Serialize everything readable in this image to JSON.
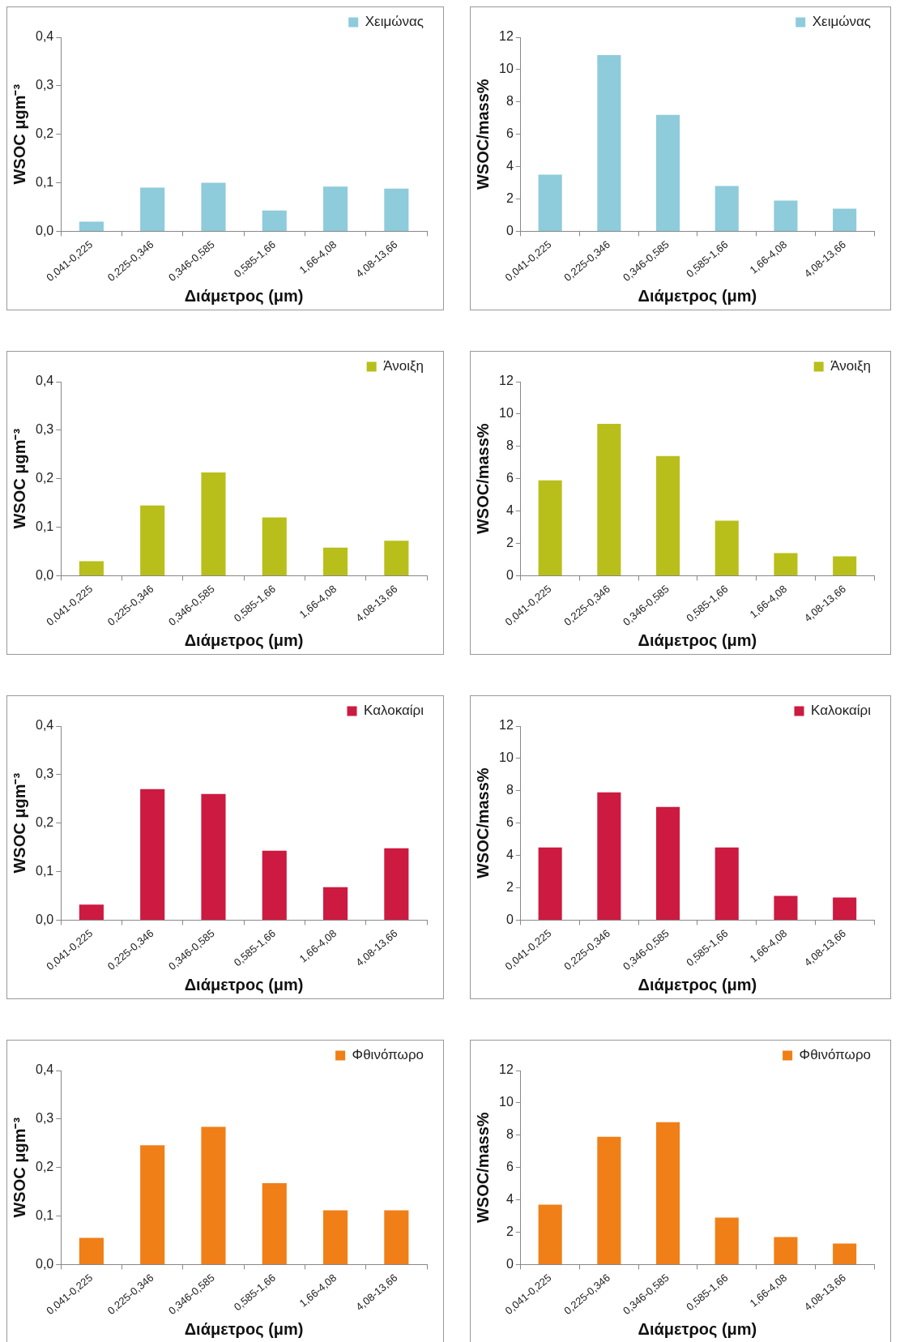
{
  "chart_data": [
    {
      "type": "bar",
      "categories": [
        "0,041-0,225",
        "0,225-0,346",
        "0,346-0,585",
        "0,585-1,66",
        "1,66-4,08",
        "4,08-13,66"
      ],
      "xlabel": "Διάμετρος (μm)",
      "ylabel": "WSOC μgm⁻³",
      "ylim": [
        0,
        0.4
      ],
      "yticks": [
        {
          "value": 0,
          "label": "0,0"
        },
        {
          "value": 0.1,
          "label": "0,1"
        },
        {
          "value": 0.2,
          "label": "0,2"
        },
        {
          "value": 0.3,
          "label": "0,3"
        },
        {
          "value": 0.4,
          "label": "0,4"
        }
      ],
      "legend": "top right",
      "grid": false,
      "series": [
        {
          "name": "Χειμώνας",
          "color": "#8ecbdb",
          "values": [
            0.02,
            0.09,
            0.1,
            0.043,
            0.092,
            0.088
          ]
        }
      ]
    },
    {
      "type": "bar",
      "categories": [
        "0,041-0,225",
        "0,225-0,346",
        "0,346-0,585",
        "0,585-1,66",
        "1,66-4,08",
        "4,08-13,66"
      ],
      "xlabel": "Διάμετρος (μm)",
      "ylabel": "WSOC/mass%",
      "ylim": [
        0,
        12
      ],
      "yticks": [
        0,
        2,
        4,
        6,
        8,
        10,
        12
      ],
      "legend": "top right",
      "grid": false,
      "series": [
        {
          "name": "Χειμώνας",
          "color": "#8ecbdb",
          "values": [
            3.5,
            10.9,
            7.2,
            2.8,
            1.9,
            1.4
          ]
        }
      ]
    },
    {
      "type": "bar",
      "categories": [
        "0,041-0,225",
        "0,225-0,346",
        "0,346-0,585",
        "0,585-1,66",
        "1,66-4,08",
        "4,08-13,66"
      ],
      "xlabel": "Διάμετρος (μm)",
      "ylabel": "WSOC μgm⁻³",
      "ylim": [
        0,
        0.4
      ],
      "yticks": [
        {
          "value": 0,
          "label": "0,0"
        },
        {
          "value": 0.1,
          "label": "0,1"
        },
        {
          "value": 0.2,
          "label": "0,2"
        },
        {
          "value": 0.3,
          "label": "0,3"
        },
        {
          "value": 0.4,
          "label": "0,4"
        }
      ],
      "legend": "top right",
      "grid": false,
      "series": [
        {
          "name": "Άνοιξη",
          "color": "#b8bf1a",
          "values": [
            0.03,
            0.145,
            0.213,
            0.12,
            0.058,
            0.072
          ]
        }
      ]
    },
    {
      "type": "bar",
      "categories": [
        "0,041-0,225",
        "0,225-0,346",
        "0,346-0,585",
        "0,585-1,66",
        "1,66-4,08",
        "4,08-13,66"
      ],
      "xlabel": "Διάμετρος (μm)",
      "ylabel": "WSOC/mass%",
      "ylim": [
        0,
        12
      ],
      "yticks": [
        0,
        2,
        4,
        6,
        8,
        10,
        12
      ],
      "legend": "top right",
      "grid": false,
      "series": [
        {
          "name": "Άνοιξη",
          "color": "#b8bf1a",
          "values": [
            5.9,
            9.4,
            7.4,
            3.4,
            1.4,
            1.2
          ]
        }
      ]
    },
    {
      "type": "bar",
      "categories": [
        "0,041-0,225",
        "0,225-0,346",
        "0,346-0,585",
        "0,585-1,66",
        "1,66-4,08",
        "4,08-13,66"
      ],
      "xlabel": "Διάμετρος (μm)",
      "ylabel": "WSOC μgm⁻³",
      "ylim": [
        0,
        0.4
      ],
      "yticks": [
        {
          "value": 0,
          "label": "0,0"
        },
        {
          "value": 0.1,
          "label": "0,1"
        },
        {
          "value": 0.2,
          "label": "0,2"
        },
        {
          "value": 0.3,
          "label": "0,3"
        },
        {
          "value": 0.4,
          "label": "0,4"
        }
      ],
      "legend": "top right",
      "grid": false,
      "series": [
        {
          "name": "Καλοκαίρι",
          "color": "#cc1a40",
          "values": [
            0.032,
            0.27,
            0.26,
            0.143,
            0.068,
            0.148
          ]
        }
      ]
    },
    {
      "type": "bar",
      "categories": [
        "0,041-0,225",
        "0,225-0,346",
        "0,346-0,585",
        "0,585-1,66",
        "1,66-4,08",
        "4,08-13,66"
      ],
      "xlabel": "Διάμετρος (μm)",
      "ylabel": "WSOC/mass%",
      "ylim": [
        0,
        12
      ],
      "yticks": [
        0,
        2,
        4,
        6,
        8,
        10,
        12
      ],
      "legend": "top right",
      "grid": false,
      "series": [
        {
          "name": "Καλοκαίρι",
          "color": "#cc1a40",
          "values": [
            4.5,
            7.9,
            7.0,
            4.5,
            1.5,
            1.4
          ]
        }
      ]
    },
    {
      "type": "bar",
      "categories": [
        "0,041-0,225",
        "0,225-0,346",
        "0,346-0,585",
        "0,585-1,66",
        "1,66-4,08",
        "4,08-13,66"
      ],
      "xlabel": "Διάμετρος (μm)",
      "ylabel": "WSOC μgm⁻³",
      "ylim": [
        0,
        0.4
      ],
      "yticks": [
        {
          "value": 0,
          "label": "0,0"
        },
        {
          "value": 0.1,
          "label": "0,1"
        },
        {
          "value": 0.2,
          "label": "0,2"
        },
        {
          "value": 0.3,
          "label": "0,3"
        },
        {
          "value": 0.4,
          "label": "0,4"
        }
      ],
      "legend": "top right",
      "grid": false,
      "series": [
        {
          "name": "Φθινόπωρο",
          "color": "#f07f17",
          "values": [
            0.055,
            0.246,
            0.284,
            0.168,
            0.112,
            0.112
          ]
        }
      ]
    },
    {
      "type": "bar",
      "categories": [
        "0,041-0,225",
        "0,225-0,346",
        "0,346-0,585",
        "0,585-1,66",
        "1,66-4,08",
        "4,08-13,66"
      ],
      "xlabel": "Διάμετρος (μm)",
      "ylabel": "WSOC/mass%",
      "ylim": [
        0,
        12
      ],
      "yticks": [
        0,
        2,
        4,
        6,
        8,
        10,
        12
      ],
      "legend": "top right",
      "grid": false,
      "series": [
        {
          "name": "Φθινόπωρο",
          "color": "#f07f17",
          "values": [
            3.7,
            7.9,
            8.8,
            2.9,
            1.7,
            1.3
          ]
        }
      ]
    }
  ]
}
